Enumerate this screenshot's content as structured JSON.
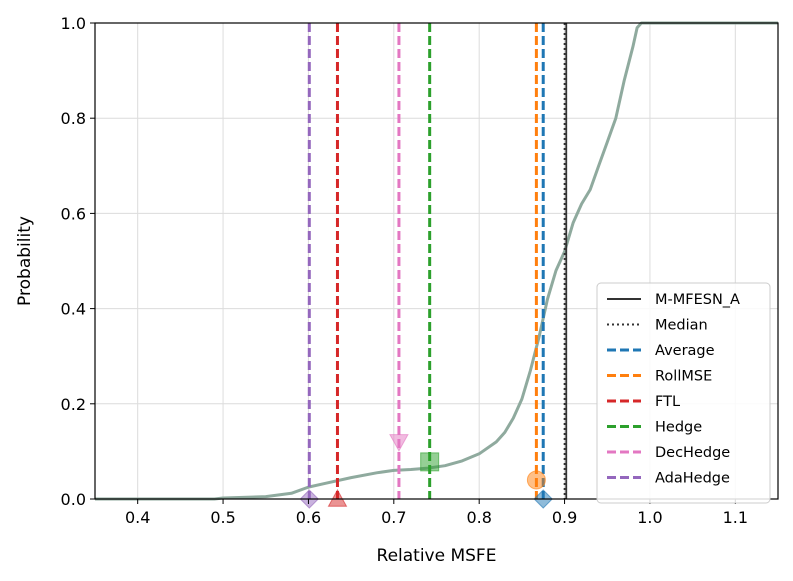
{
  "chart_data": {
    "type": "line",
    "xlabel": "Relative MSFE",
    "ylabel": "Probability",
    "xlim": [
      0.35,
      1.15
    ],
    "ylim": [
      0.0,
      1.0
    ],
    "xticks": [
      "0.4",
      "0.5",
      "0.6",
      "0.7",
      "0.8",
      "0.9",
      "1.0",
      "1.1"
    ],
    "yticks": [
      "0.0",
      "0.2",
      "0.4",
      "0.6",
      "0.8",
      "1.0"
    ],
    "grid": true,
    "legend_position": "lower-right",
    "ecdf": {
      "color": "#8faa9e",
      "points": [
        [
          0.35,
          0.0
        ],
        [
          0.49,
          0.0
        ],
        [
          0.5,
          0.002
        ],
        [
          0.55,
          0.005
        ],
        [
          0.58,
          0.012
        ],
        [
          0.6,
          0.025
        ],
        [
          0.62,
          0.033
        ],
        [
          0.65,
          0.045
        ],
        [
          0.68,
          0.055
        ],
        [
          0.7,
          0.06
        ],
        [
          0.72,
          0.062
        ],
        [
          0.74,
          0.065
        ],
        [
          0.76,
          0.07
        ],
        [
          0.78,
          0.08
        ],
        [
          0.8,
          0.095
        ],
        [
          0.82,
          0.12
        ],
        [
          0.83,
          0.14
        ],
        [
          0.84,
          0.17
        ],
        [
          0.85,
          0.21
        ],
        [
          0.86,
          0.27
        ],
        [
          0.87,
          0.34
        ],
        [
          0.88,
          0.42
        ],
        [
          0.89,
          0.48
        ],
        [
          0.9,
          0.52
        ],
        [
          0.91,
          0.58
        ],
        [
          0.92,
          0.62
        ],
        [
          0.93,
          0.65
        ],
        [
          0.94,
          0.7
        ],
        [
          0.95,
          0.75
        ],
        [
          0.96,
          0.8
        ],
        [
          0.97,
          0.88
        ],
        [
          0.98,
          0.95
        ],
        [
          0.985,
          0.99
        ],
        [
          0.99,
          1.0
        ],
        [
          1.15,
          1.0
        ]
      ]
    },
    "series": [
      {
        "name": "M-MFESN_A",
        "x": 0.902,
        "color": "#333333",
        "dash": "solid",
        "marker": null,
        "marker_y": null
      },
      {
        "name": "Median",
        "x": 0.9,
        "color": "#333333",
        "dash": "dotted",
        "marker": null,
        "marker_y": null
      },
      {
        "name": "Average",
        "x": 0.875,
        "color": "#1f77b4",
        "dash": "dashed",
        "marker": "diamond",
        "marker_y": 0.0
      },
      {
        "name": "RollMSE",
        "x": 0.867,
        "color": "#ff7f0e",
        "dash": "dashed",
        "marker": "circle",
        "marker_y": 0.04
      },
      {
        "name": "FTL",
        "x": 0.634,
        "color": "#d62728",
        "dash": "dashed",
        "marker": "triangle-up",
        "marker_y": 0.0
      },
      {
        "name": "Hedge",
        "x": 0.742,
        "color": "#2ca02c",
        "dash": "dashed",
        "marker": "square",
        "marker_y": 0.078
      },
      {
        "name": "DecHedge",
        "x": 0.706,
        "color": "#e377c2",
        "dash": "dashed",
        "marker": "triangle-down",
        "marker_y": 0.12
      },
      {
        "name": "AdaHedge",
        "x": 0.601,
        "color": "#9467bd",
        "dash": "dashed",
        "marker": "diamond",
        "marker_y": 0.0
      }
    ]
  }
}
